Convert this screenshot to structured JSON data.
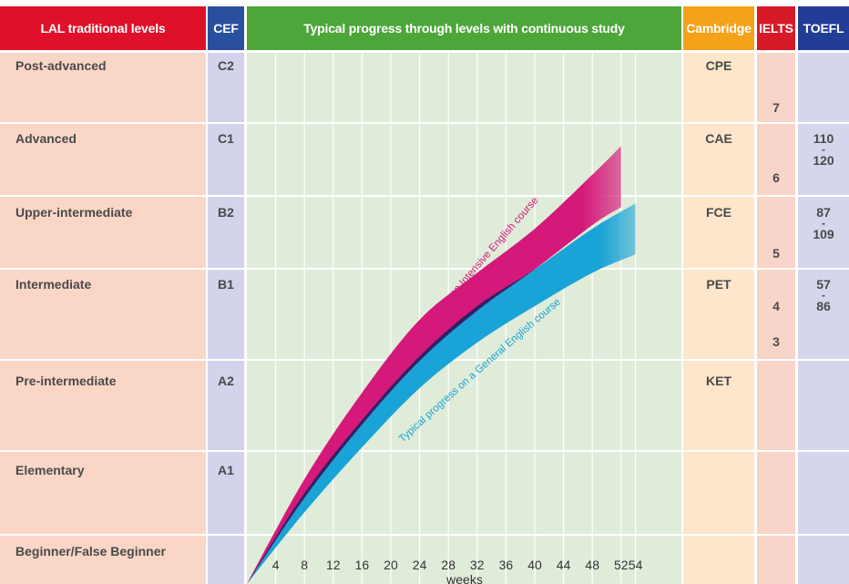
{
  "headers": {
    "lal": "LAL traditional levels",
    "cef": "CEF",
    "progress": "Typical progress through levels with continuous study",
    "cambridge": "Cambridge",
    "ielts": "IELTS",
    "toefl": "TOEFL"
  },
  "levels": [
    {
      "name": "Post-advanced",
      "cef": "C2",
      "cambridge": "CPE"
    },
    {
      "name": "Advanced",
      "cef": "C1",
      "cambridge": "CAE"
    },
    {
      "name": "Upper-intermediate",
      "cef": "B2",
      "cambridge": "FCE"
    },
    {
      "name": "Intermediate",
      "cef": "B1",
      "cambridge": "PET"
    },
    {
      "name": "Pre-intermediate",
      "cef": "A2",
      "cambridge": "KET"
    },
    {
      "name": "Elementary",
      "cef": "A1",
      "cambridge": ""
    },
    {
      "name": "Beginner/False Beginner",
      "cef": "",
      "cambridge": ""
    }
  ],
  "ielts_scores": [
    "7",
    "6",
    "5",
    "4",
    "3"
  ],
  "toefl_ranges": [
    {
      "low": "110",
      "sep": "-",
      "high": "120"
    },
    {
      "low": "87",
      "sep": "-",
      "high": "109"
    },
    {
      "low": "57",
      "sep": "-",
      "high": "86"
    }
  ],
  "colors": {
    "header_lal": "#e0102a",
    "header_cef": "#2a4f9e",
    "header_progress": "#4da63a",
    "header_cambridge": "#f4a21a",
    "header_ielts": "#d71a28",
    "header_toefl": "#223d95",
    "col_lal": "#fad6c7",
    "col_cef": "#d3d3ec",
    "col_progress": "#dfecd9",
    "col_cambridge": "#fde6cb",
    "col_ielts": "#f8d5c8",
    "col_toefl": "#d4d6ec",
    "intensive": "#d5197a",
    "general": "#1aa3d6",
    "overlap": "#2e2266"
  },
  "chart_data": {
    "type": "area",
    "xlabel": "weeks",
    "x_ticks": [
      4,
      8,
      12,
      16,
      20,
      24,
      28,
      32,
      36,
      40,
      44,
      48,
      52,
      54
    ],
    "y_categories": [
      "Beginner/False Beginner",
      "Elementary",
      "Pre-intermediate",
      "Intermediate",
      "Upper-intermediate",
      "Advanced",
      "Post-advanced"
    ],
    "series": [
      {
        "name": "Typical progress on an Intensive English course",
        "x": [
          0,
          8,
          16,
          24,
          32,
          40,
          48,
          52
        ],
        "lower": [
          0,
          0.9,
          1.7,
          2.4,
          2.95,
          3.5,
          4.1,
          4.35
        ],
        "upper": [
          0,
          1.1,
          2.05,
          2.85,
          3.45,
          4.05,
          4.8,
          5.2
        ]
      },
      {
        "name": "Typical progress on a General English course",
        "x": [
          0,
          8,
          16,
          24,
          32,
          40,
          48,
          54
        ],
        "lower": [
          0,
          0.75,
          1.45,
          2.1,
          2.6,
          3.0,
          3.45,
          3.7
        ],
        "upper": [
          0,
          0.95,
          1.75,
          2.45,
          3.0,
          3.5,
          4.05,
          4.4
        ]
      }
    ]
  }
}
